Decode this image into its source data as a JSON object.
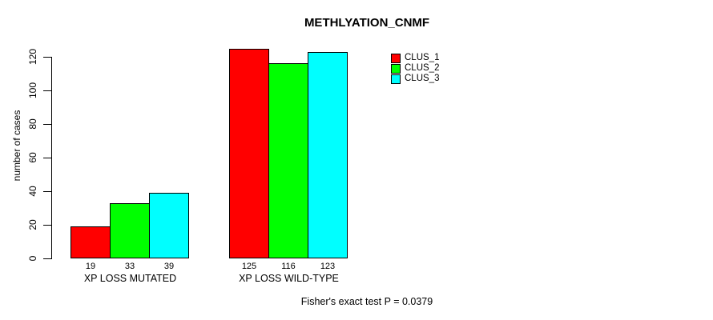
{
  "chart_data": {
    "type": "bar",
    "title": "METHLYATION_CNMF",
    "ylabel": "number of cases",
    "xlabel": "",
    "categories": [
      "XP LOSS MUTATED",
      "XP LOSS WILD-TYPE"
    ],
    "series": [
      {
        "name": "CLUS_1",
        "color": "#ff0000",
        "values": [
          19,
          125
        ]
      },
      {
        "name": "CLUS_2",
        "color": "#00ff00",
        "values": [
          33,
          116
        ]
      },
      {
        "name": "CLUS_3",
        "color": "#00ffff",
        "values": [
          39,
          123
        ]
      }
    ],
    "bar_value_labels": [
      [
        19,
        33,
        39
      ],
      [
        125,
        116,
        123
      ]
    ],
    "yticks": [
      0,
      20,
      40,
      60,
      80,
      100,
      120
    ],
    "ylim": [
      0,
      129
    ],
    "grid": false,
    "legend_position": "top-right",
    "footer": "Fisher's exact test P = 0.0379"
  }
}
